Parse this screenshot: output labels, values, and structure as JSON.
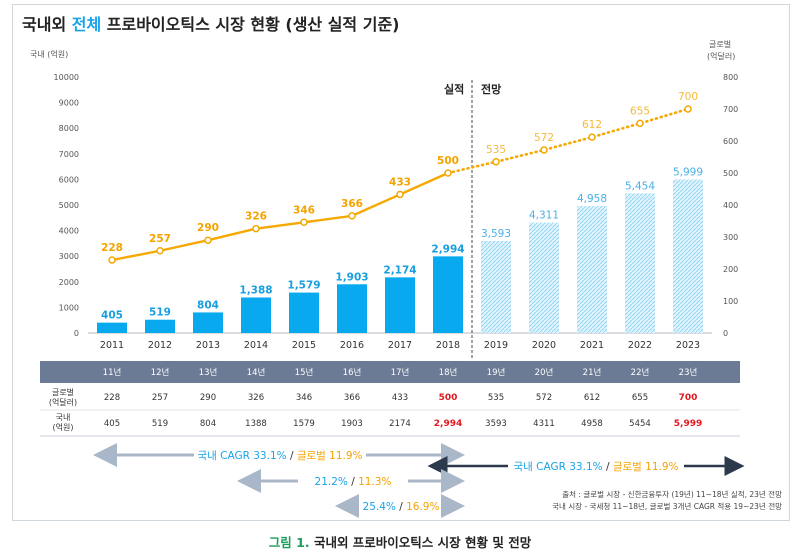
{
  "title": {
    "prefix": "국내외 ",
    "accent": "전체",
    "rest": " 프로바이오틱스 시장 현황 (생산 실적 기준)"
  },
  "chart_data": {
    "type": "bar+line",
    "categories": [
      "2011",
      "2012",
      "2013",
      "2014",
      "2015",
      "2016",
      "2017",
      "2018",
      "2019",
      "2020",
      "2021",
      "2022",
      "2023"
    ],
    "domestic": {
      "name": "국내 (억원)",
      "values": [
        405,
        519,
        804,
        1388,
        1579,
        1903,
        2174,
        2994,
        3593,
        4311,
        4958,
        5454,
        5999
      ],
      "labels": [
        "405",
        "519",
        "804",
        "1,388",
        "1,579",
        "1,903",
        "2,174",
        "2,994",
        "3,593",
        "4,311",
        "4,958",
        "5,454",
        "5,999"
      ]
    },
    "global": {
      "name": "글로벌 (억달러)",
      "values": [
        228,
        257,
        290,
        326,
        346,
        366,
        433,
        500,
        535,
        572,
        612,
        655,
        700
      ],
      "labels": [
        "228",
        "257",
        "290",
        "326",
        "346",
        "366",
        "433",
        "500",
        "535",
        "572",
        "612",
        "655",
        "700"
      ]
    },
    "actual_count": 8,
    "left_axis": {
      "label": "국내 (억원)",
      "ylim": [
        0,
        10000
      ],
      "ticks": [
        "0",
        "1000",
        "2000",
        "3000",
        "4000",
        "5000",
        "6000",
        "7000",
        "8000",
        "9000",
        "10000"
      ]
    },
    "right_axis": {
      "label_line1": "글로벌",
      "label_line2": "(억달러)",
      "ylim": [
        0,
        800
      ],
      "ticks": [
        "0",
        "100",
        "200",
        "300",
        "400",
        "500",
        "600",
        "700",
        "800"
      ]
    },
    "section_actual": "실적",
    "section_forecast": "전망"
  },
  "table": {
    "headers": [
      "11년",
      "12년",
      "13년",
      "14년",
      "15년",
      "16년",
      "17년",
      "18년",
      "19년",
      "20년",
      "21년",
      "22년",
      "23년"
    ],
    "global_label": [
      "글로벌",
      "(억달러)"
    ],
    "global_values": [
      "228",
      "257",
      "290",
      "326",
      "346",
      "366",
      "433",
      "500",
      "535",
      "572",
      "612",
      "655",
      "700"
    ],
    "domestic_label": [
      "국내",
      "(억원)"
    ],
    "domestic_values": [
      "405",
      "519",
      "804",
      "1388",
      "1579",
      "1903",
      "2174",
      "2,994",
      "3593",
      "4311",
      "4958",
      "5454",
      "5,999"
    ],
    "red_columns": [
      7,
      12
    ]
  },
  "cagr": {
    "row1_left": "국내 CAGR 33.1%",
    "row1_sep": " / ",
    "row1_right": "글로벌 11.9%",
    "row1_forecast_left": "국내 CAGR 33.1%",
    "row1_forecast_sep": " / ",
    "row1_forecast_right": "글로벌 11.9%",
    "row2_left": "21.2%",
    "row2_sep": " / ",
    "row2_right": "11.3%",
    "row3_left": "25.4%",
    "row3_sep": " / ",
    "row3_right": "16.9%"
  },
  "source": {
    "line1": "출처 : 글로벌 시장 - 신한금융투자 (19년) 11~18년 실적, 23년 전망",
    "line2": "국내 시장 - 국세청 11~18년, 글로벌 3개년 CAGR 적용 19~23년 전망"
  },
  "caption": {
    "fig": "그림 1.",
    "text": " 국내외 프로바이오틱스 시장 현황 및 전망"
  },
  "colors": {
    "bar": "#09a9ef",
    "bar_forecast": "#bfe6f8",
    "line": "#f5a800",
    "header": "#6b7b95",
    "red": "#e0191f"
  }
}
